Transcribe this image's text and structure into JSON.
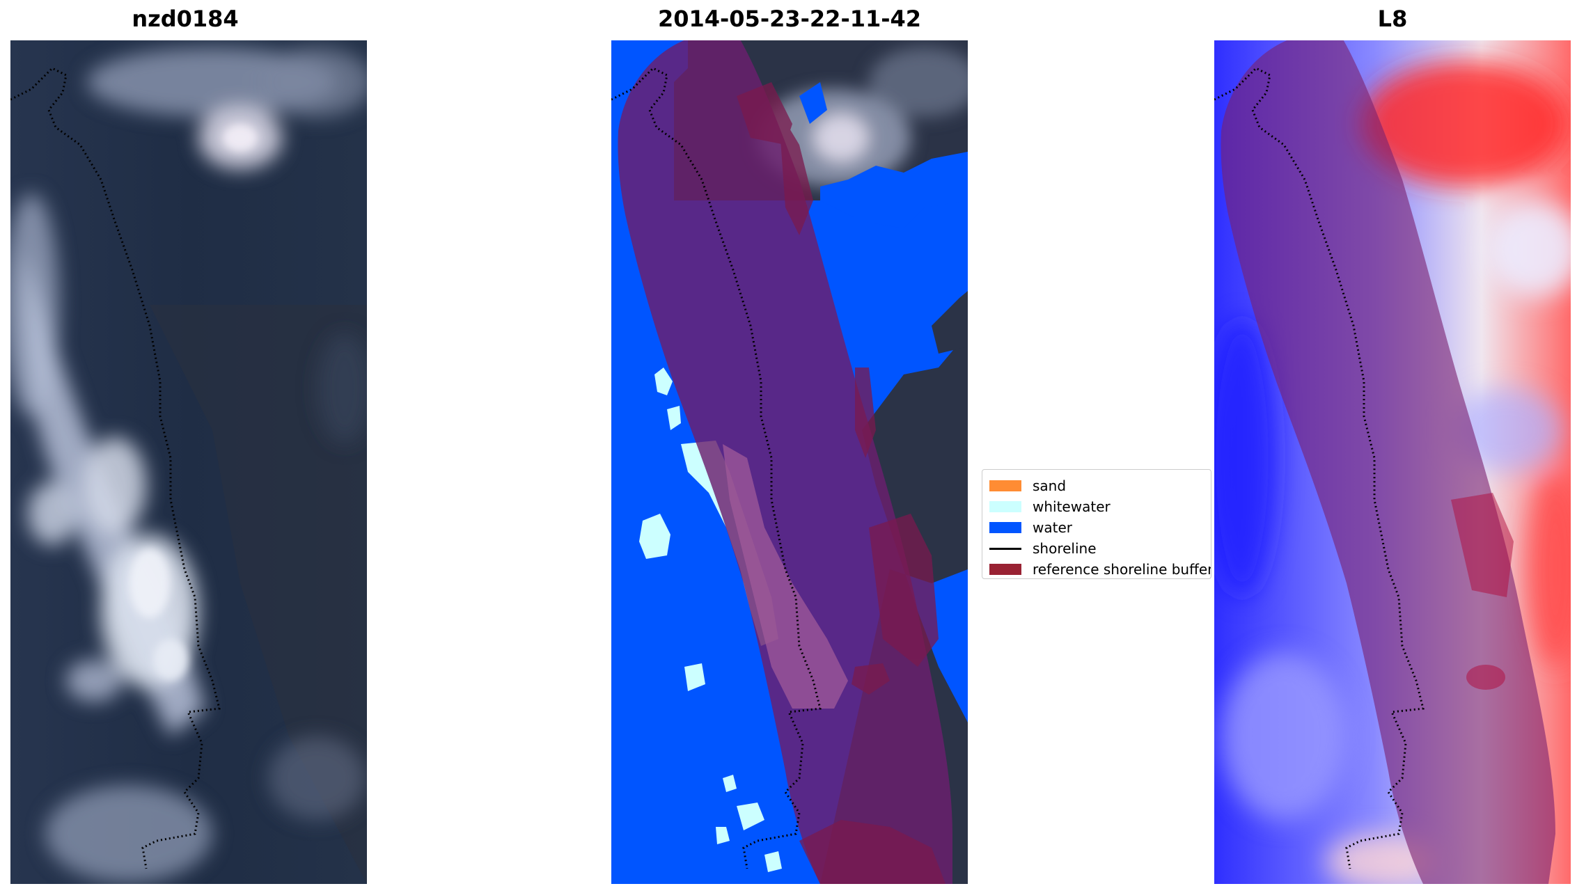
{
  "panels": [
    {
      "title": "nzd0184"
    },
    {
      "title": "2014-05-23-22-11-42"
    },
    {
      "title": "L8"
    }
  ],
  "legend": {
    "items": [
      {
        "label": "sand",
        "color": "#ff8c33"
      },
      {
        "label": "whitewater",
        "color": "#ccffff"
      },
      {
        "label": "water",
        "color": "#0055ff"
      },
      {
        "label": "shoreline",
        "color": "#000000"
      },
      {
        "label": "reference shoreline buffer",
        "color": "#992233"
      }
    ]
  },
  "colors": {
    "buffer_overlay": "#7a1a4d",
    "ocean_dark": "#1d2b44",
    "cloud": "#c9d1e3",
    "classified_water": "#0055ff",
    "index_water": "#1a1aff",
    "index_land": "#ff1a1a"
  }
}
